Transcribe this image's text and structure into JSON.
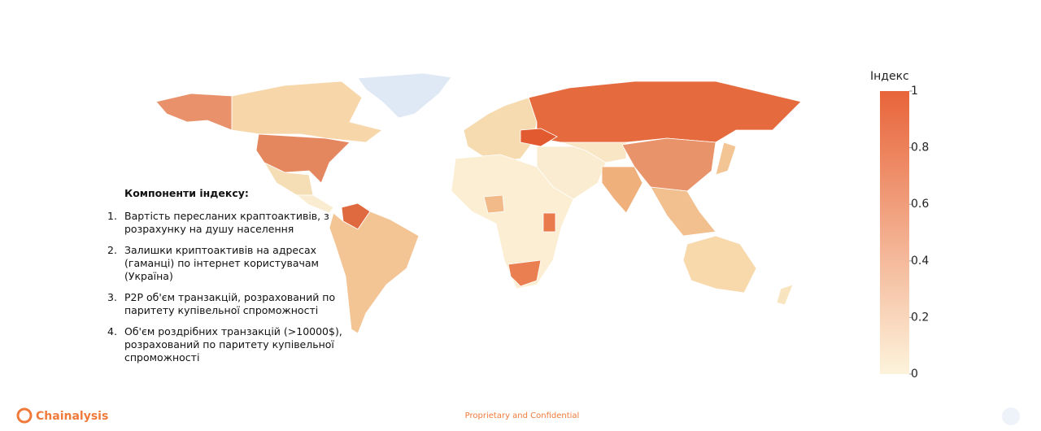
{
  "map": {
    "colorbar": {
      "title": "Індекс",
      "range": [
        0,
        1
      ],
      "ticks": [
        0,
        0.2,
        0.4,
        0.6,
        0.8,
        1
      ],
      "colors": [
        "#fdf3dc",
        "#e8643a"
      ]
    }
  },
  "legend": {
    "title": "Компоненти індексу:",
    "items": [
      [
        "Вартість пересланих краптоактивів, з",
        "розрахунку на душу населення"
      ],
      [
        "Залишки криптоактивів на адресах",
        "(гаманці) по інтернет користувачам",
        "(Україна)"
      ],
      [
        "P2P об'єм транзакцій, розрахований по",
        "паритету купівельної спроможності"
      ],
      [
        "Об'єм роздрібних транзакцій  (>10000$),",
        "розрахований по паритету купівельної",
        "спроможності"
      ]
    ]
  },
  "footer": {
    "brand": "Chainalysis",
    "note": "Proprietary and Confidential"
  }
}
